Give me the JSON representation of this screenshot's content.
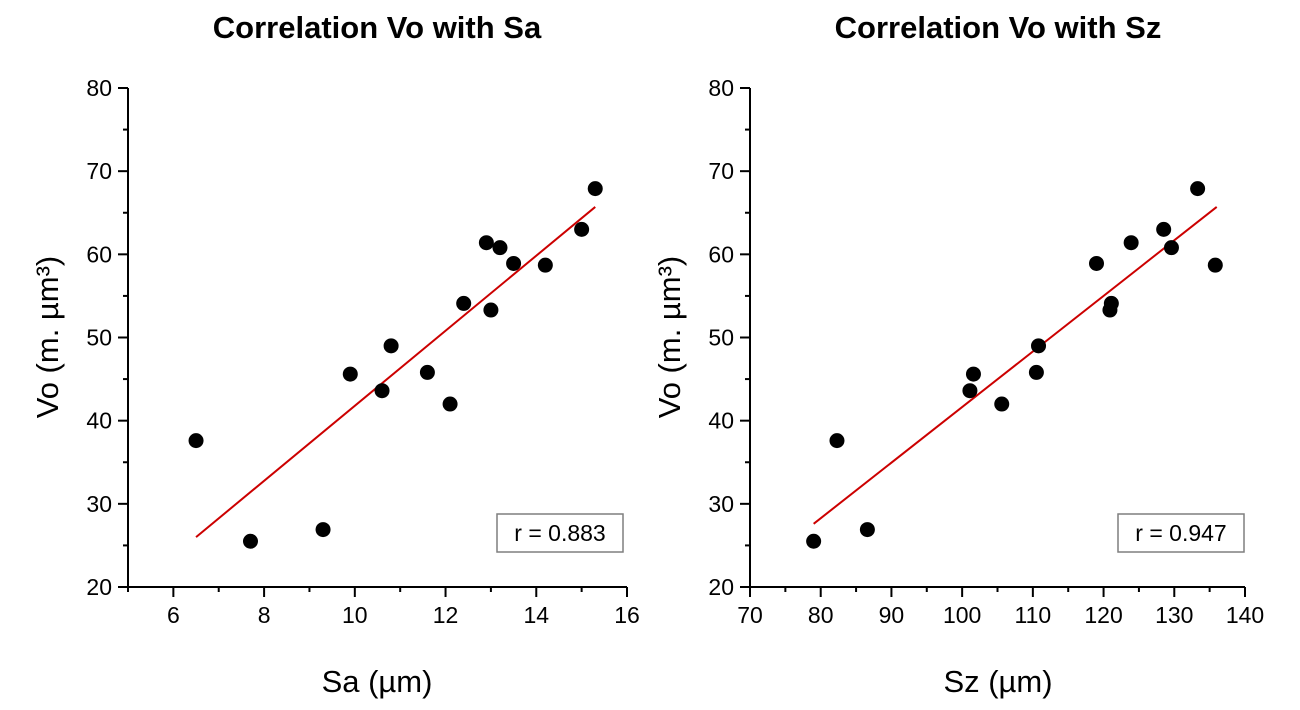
{
  "chart_data": [
    {
      "type": "scatter",
      "title": "Correlation Vo with Sa",
      "xlabel": "Sa (µm)",
      "ylabel": "Vo (m. µm³)",
      "xlim": [
        5,
        16
      ],
      "ylim": [
        20,
        80
      ],
      "xticks": [
        6,
        8,
        10,
        12,
        14,
        16
      ],
      "yticks": [
        20,
        30,
        40,
        50,
        60,
        70,
        80
      ],
      "grid": false,
      "marker_color": "#000000",
      "fit_color": "#cc0000",
      "annotation": "r = 0.883",
      "points": [
        {
          "x": 6.5,
          "y": 37.6
        },
        {
          "x": 7.7,
          "y": 25.5
        },
        {
          "x": 9.3,
          "y": 26.9
        },
        {
          "x": 9.9,
          "y": 45.6
        },
        {
          "x": 10.6,
          "y": 43.6
        },
        {
          "x": 10.8,
          "y": 49.0
        },
        {
          "x": 11.6,
          "y": 45.8
        },
        {
          "x": 12.1,
          "y": 42.0
        },
        {
          "x": 12.4,
          "y": 54.1
        },
        {
          "x": 12.9,
          "y": 61.4
        },
        {
          "x": 13.0,
          "y": 53.3
        },
        {
          "x": 13.2,
          "y": 60.8
        },
        {
          "x": 13.5,
          "y": 58.9
        },
        {
          "x": 14.2,
          "y": 58.7
        },
        {
          "x": 15.0,
          "y": 63.0
        },
        {
          "x": 15.3,
          "y": 67.9
        }
      ],
      "fit_line": [
        {
          "x": 6.5,
          "y": 26.0
        },
        {
          "x": 15.3,
          "y": 65.7
        }
      ]
    },
    {
      "type": "scatter",
      "title": "Correlation Vo with Sz",
      "xlabel": "Sz (µm)",
      "ylabel": "Vo (m. µm³)",
      "xlim": [
        70,
        140
      ],
      "ylim": [
        20,
        80
      ],
      "xticks": [
        70,
        80,
        90,
        100,
        110,
        120,
        130,
        140
      ],
      "yticks": [
        20,
        30,
        40,
        50,
        60,
        70,
        80
      ],
      "grid": false,
      "marker_color": "#000000",
      "fit_color": "#cc0000",
      "annotation": "r = 0.947",
      "points": [
        {
          "x": 79.0,
          "y": 25.5
        },
        {
          "x": 82.3,
          "y": 37.6
        },
        {
          "x": 86.6,
          "y": 26.9
        },
        {
          "x": 101.1,
          "y": 43.6
        },
        {
          "x": 101.6,
          "y": 45.6
        },
        {
          "x": 105.6,
          "y": 42.0
        },
        {
          "x": 110.5,
          "y": 45.8
        },
        {
          "x": 110.8,
          "y": 49.0
        },
        {
          "x": 119.0,
          "y": 58.9
        },
        {
          "x": 120.9,
          "y": 53.3
        },
        {
          "x": 121.1,
          "y": 54.1
        },
        {
          "x": 123.9,
          "y": 61.4
        },
        {
          "x": 128.5,
          "y": 63.0
        },
        {
          "x": 129.6,
          "y": 60.8
        },
        {
          "x": 133.3,
          "y": 67.9
        },
        {
          "x": 135.8,
          "y": 58.7
        }
      ],
      "fit_line": [
        {
          "x": 79.0,
          "y": 27.6
        },
        {
          "x": 136.0,
          "y": 65.7
        }
      ]
    }
  ]
}
